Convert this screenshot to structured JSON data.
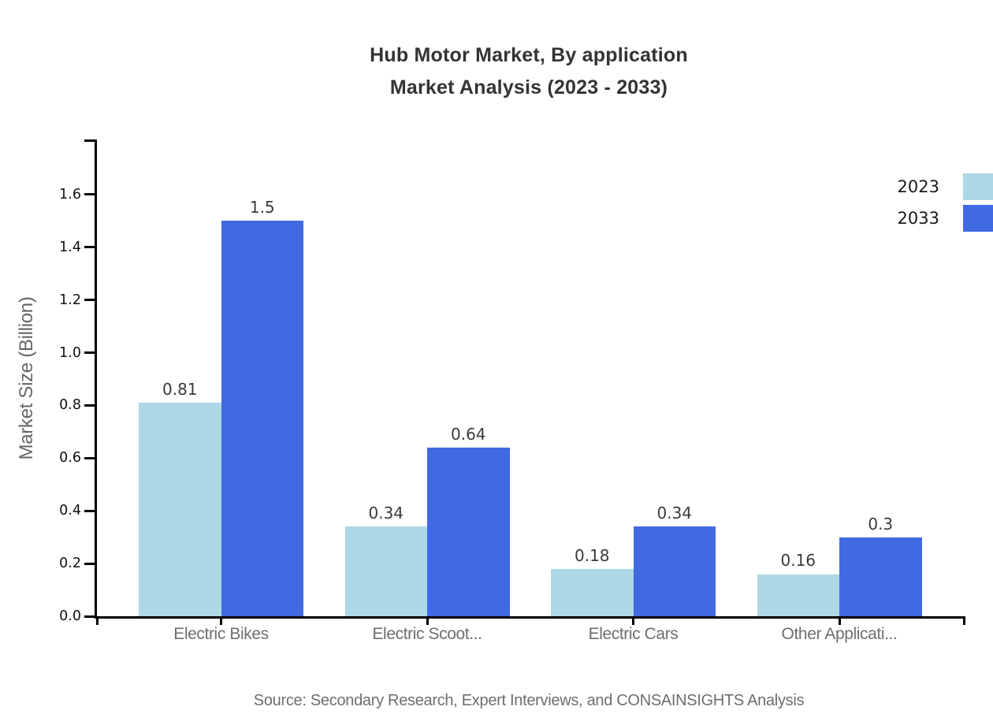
{
  "chart_data": {
    "type": "bar",
    "title_line1": "Hub Motor Market, By application",
    "title_line2": "Market Analysis (2023 - 2033)",
    "ylabel": "Market Size (Billion)",
    "ylim": [
      0,
      1.8
    ],
    "yticks": [
      "0.0",
      "0.2",
      "0.4",
      "0.6",
      "0.8",
      "1.0",
      "1.2",
      "1.4",
      "1.6"
    ],
    "ytick_values": [
      0,
      0.2,
      0.4,
      0.6,
      0.8,
      1.0,
      1.2,
      1.4,
      1.6
    ],
    "categories": [
      "Electric Bikes",
      "Electric Scoot...",
      "Electric Cars",
      "Other Applicati..."
    ],
    "series": [
      {
        "name": "2023",
        "color": "#ADD8E6",
        "values": [
          0.81,
          0.34,
          0.18,
          0.16
        ],
        "labels": [
          "0.81",
          "0.34",
          "0.18",
          "0.16"
        ]
      },
      {
        "name": "2033",
        "color": "#4169E1",
        "values": [
          1.5,
          0.64,
          0.34,
          0.3
        ],
        "labels": [
          "1.5",
          "0.64",
          "0.34",
          "0.3"
        ]
      }
    ],
    "grid": false,
    "legend_position": "top-right",
    "source": "Source: Secondary Research, Expert Interviews, and CONSAINSIGHTS Analysis",
    "axis_color": "#000000",
    "title_color": "#333333",
    "label_color": "#6e6e6e"
  }
}
